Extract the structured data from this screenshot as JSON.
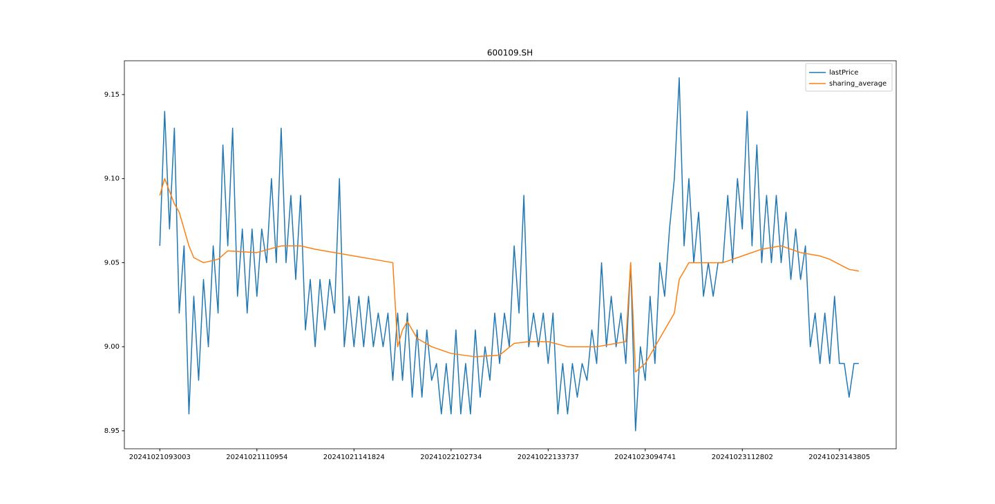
{
  "chart_data": {
    "type": "line",
    "title": "600109.SH",
    "xlim": [
      -7.3,
      151.7
    ],
    "ylim": [
      8.9393,
      9.1701
    ],
    "xticks": [
      {
        "value": 0,
        "label": "20241021093003"
      },
      {
        "value": 20,
        "label": "20241021110954"
      },
      {
        "value": 40,
        "label": "20241021141824"
      },
      {
        "value": 60,
        "label": "20241022102734"
      },
      {
        "value": 80,
        "label": "20241022133737"
      },
      {
        "value": 100,
        "label": "20241023094741"
      },
      {
        "value": 120,
        "label": "20241023112802"
      },
      {
        "value": 140,
        "label": "20241023143805"
      }
    ],
    "yticks": [
      8.95,
      {
        "value": 9,
        "label": "9.00"
      },
      9.05,
      {
        "value": 9.1,
        "label": "9.10"
      },
      9.15
    ],
    "legend": "upper right",
    "series": [
      {
        "name": "lastPrice",
        "color": "#1f77b4",
        "x": [
          0,
          1,
          2,
          3,
          4,
          5,
          6,
          7,
          8,
          9,
          10,
          11,
          12,
          13,
          14,
          15,
          16,
          17,
          18,
          19,
          20,
          21,
          22,
          23,
          24,
          25,
          26,
          27,
          28,
          29,
          30,
          31,
          32,
          33,
          34,
          35,
          36,
          37,
          38,
          39,
          40,
          41,
          42,
          43,
          44,
          45,
          46,
          47,
          48,
          49,
          50,
          51,
          52,
          53,
          54,
          55,
          56,
          57,
          58,
          59,
          60,
          61,
          62,
          63,
          64,
          65,
          66,
          67,
          68,
          69,
          70,
          71,
          72,
          73,
          74,
          75,
          76,
          77,
          78,
          79,
          80,
          81,
          82,
          83,
          84,
          85,
          86,
          87,
          88,
          89,
          90,
          91,
          92,
          93,
          94,
          95,
          96,
          97,
          98,
          99,
          100,
          101,
          102,
          103,
          104,
          105,
          106,
          107,
          108,
          109,
          110,
          111,
          112,
          113,
          114,
          115,
          116,
          117,
          118,
          119,
          120,
          121,
          122,
          123,
          124,
          125,
          126,
          127,
          128,
          129,
          130,
          131,
          132,
          133,
          134,
          135,
          136,
          137,
          138,
          139,
          140,
          141,
          142,
          143,
          144
        ],
        "values": [
          9.06,
          9.14,
          9.07,
          9.13,
          9.02,
          9.06,
          8.96,
          9.03,
          8.98,
          9.04,
          9.0,
          9.06,
          9.02,
          9.12,
          9.06,
          9.13,
          9.03,
          9.07,
          9.02,
          9.07,
          9.03,
          9.07,
          9.05,
          9.1,
          9.05,
          9.13,
          9.05,
          9.09,
          9.04,
          9.09,
          9.01,
          9.04,
          9.0,
          9.04,
          9.01,
          9.04,
          9.02,
          9.1,
          9.0,
          9.03,
          9.0,
          9.03,
          9.0,
          9.03,
          9.0,
          9.02,
          9.0,
          9.02,
          8.98,
          9.02,
          8.98,
          9.02,
          8.97,
          9.01,
          8.97,
          9.01,
          8.98,
          8.99,
          8.96,
          8.99,
          8.96,
          9.01,
          8.96,
          8.99,
          8.96,
          9.01,
          8.97,
          9.0,
          8.98,
          9.02,
          8.99,
          9.02,
          9.0,
          9.06,
          9.02,
          9.09,
          9.0,
          9.02,
          9.0,
          9.02,
          8.99,
          9.02,
          8.96,
          8.99,
          8.96,
          8.99,
          8.97,
          8.99,
          8.98,
          9.01,
          8.99,
          9.05,
          9.0,
          9.03,
          9.0,
          9.02,
          8.99,
          9.05,
          8.95,
          9.0,
          8.98,
          9.03,
          8.99,
          9.05,
          9.03,
          9.07,
          9.1,
          9.16,
          9.06,
          9.1,
          9.05,
          9.08,
          9.03,
          9.05,
          9.03,
          9.05,
          9.05,
          9.09,
          9.05,
          9.1,
          9.07,
          9.14,
          9.06,
          9.12,
          9.05,
          9.09,
          9.05,
          9.09,
          9.05,
          9.08,
          9.04,
          9.07,
          9.04,
          9.06,
          9.0,
          9.02,
          8.99,
          9.02,
          8.99,
          9.03,
          8.99,
          8.99,
          8.97,
          8.99,
          8.99
        ]
      },
      {
        "name": "sharing_average",
        "color": "#ff7f0e",
        "x": [
          0,
          1,
          3,
          4,
          5,
          6,
          7,
          9,
          12,
          14,
          20,
          25,
          29,
          32,
          36,
          40,
          44,
          48,
          49,
          50,
          51,
          53,
          56,
          60,
          65,
          70,
          73,
          76,
          80,
          84,
          90,
          94,
          96,
          97,
          98,
          100,
          102,
          104,
          106,
          107,
          109,
          112,
          116,
          118,
          121,
          124,
          128,
          132,
          136,
          138,
          142,
          144
        ],
        "values": [
          9.09,
          9.1,
          9.085,
          9.08,
          9.07,
          9.06,
          9.053,
          9.05,
          9.052,
          9.057,
          9.056,
          9.06,
          9.06,
          9.058,
          9.056,
          9.054,
          9.052,
          9.05,
          9.0,
          9.01,
          9.015,
          9.005,
          9.0,
          8.996,
          8.994,
          8.995,
          9.002,
          9.003,
          9.003,
          9.0,
          9.0,
          9.002,
          9.003,
          9.05,
          8.985,
          8.99,
          9.0,
          9.01,
          9.02,
          9.04,
          9.05,
          9.05,
          9.05,
          9.052,
          9.055,
          9.058,
          9.06,
          9.056,
          9.054,
          9.052,
          9.046,
          9.045
        ]
      }
    ]
  }
}
